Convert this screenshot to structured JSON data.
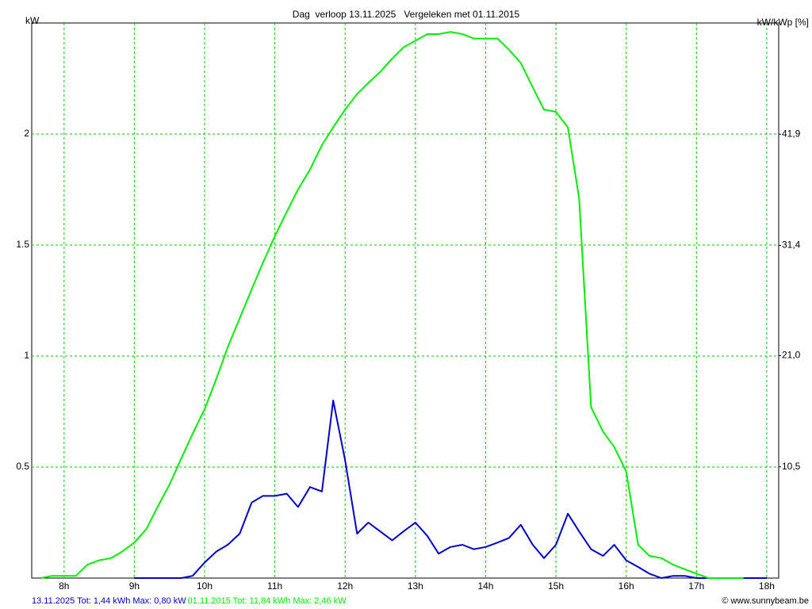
{
  "chart_data": {
    "type": "line",
    "title": "Dag  verloop 13.11.2025   Vergeleken met 01.11.2015",
    "y_label": "kW",
    "y2_label": "kW/kWp [%]",
    "credit": "© www.sunnybeam.be",
    "x": [
      7.67,
      7.83,
      8,
      8.17,
      8.33,
      8.5,
      8.67,
      8.83,
      9,
      9.17,
      9.33,
      9.5,
      9.67,
      9.83,
      10,
      10.17,
      10.33,
      10.5,
      10.67,
      10.83,
      11,
      11.17,
      11.33,
      11.5,
      11.67,
      11.83,
      12,
      12.17,
      12.33,
      12.5,
      12.67,
      12.83,
      13,
      13.17,
      13.33,
      13.5,
      13.67,
      13.83,
      14,
      14.17,
      14.33,
      14.5,
      14.67,
      14.83,
      15,
      15.17,
      15.33,
      15.5,
      15.67,
      15.83,
      16,
      16.17,
      16.33,
      16.5,
      16.67,
      16.83,
      17,
      17.17,
      17.33,
      17.5,
      17.67,
      17.83,
      18
    ],
    "xlim": [
      7.54,
      18.17
    ],
    "xticks": [
      {
        "value": 8,
        "label": "8h"
      },
      {
        "value": 9,
        "label": "9h"
      },
      {
        "value": 10,
        "label": "10h"
      },
      {
        "value": 11,
        "label": "11h"
      },
      {
        "value": 12,
        "label": "12h"
      },
      {
        "value": 13,
        "label": "13h"
      },
      {
        "value": 14,
        "label": "14h"
      },
      {
        "value": 15,
        "label": "15h"
      },
      {
        "value": 16,
        "label": "16h"
      },
      {
        "value": 17,
        "label": "17h"
      },
      {
        "value": 18,
        "label": "18h"
      }
    ],
    "ylim": [
      0,
      2.5
    ],
    "yticks": [
      0.5,
      1,
      1.5,
      2
    ],
    "y2lim": [
      0,
      52.4
    ],
    "y2ticks": [
      {
        "value": 10.5,
        "label": "10,5"
      },
      {
        "value": 21.0,
        "label": "21,0"
      },
      {
        "value": 31.4,
        "label": "31,4"
      },
      {
        "value": 41.9,
        "label": "41,9"
      }
    ],
    "grid": true,
    "series": [
      {
        "name": "13.11.2025 Tot: 1,44 kWh Max: 0,80 kW",
        "color": "#0000cc",
        "values": [
          null,
          null,
          null,
          null,
          null,
          null,
          null,
          null,
          0,
          0,
          0,
          0,
          0,
          0.01,
          0.07,
          0.12,
          0.15,
          0.2,
          0.34,
          0.37,
          0.37,
          0.38,
          0.32,
          0.41,
          0.39,
          0.8,
          0.53,
          0.2,
          0.25,
          0.21,
          0.17,
          0.21,
          0.25,
          0.19,
          0.11,
          0.14,
          0.15,
          0.13,
          0.14,
          0.16,
          0.18,
          0.24,
          0.15,
          0.09,
          0.15,
          0.29,
          0.21,
          0.13,
          0.1,
          0.15,
          0.08,
          0.05,
          0.02,
          0,
          0.01,
          0.01,
          0,
          0,
          0,
          0,
          0,
          0,
          0
        ]
      },
      {
        "name": "01.11.2015 Tot: 11,84 kWh Max: 2,46 kW",
        "color": "#00ee00",
        "values": [
          0,
          0.01,
          0.01,
          0.01,
          0.06,
          0.08,
          0.09,
          0.12,
          0.16,
          0.22,
          0.32,
          0.42,
          0.54,
          0.65,
          0.76,
          0.9,
          1.04,
          1.17,
          1.3,
          1.42,
          1.54,
          1.65,
          1.75,
          1.84,
          1.95,
          2.03,
          2.11,
          2.18,
          2.23,
          2.28,
          2.34,
          2.39,
          2.42,
          2.45,
          2.45,
          2.46,
          2.45,
          2.43,
          2.43,
          2.43,
          2.38,
          2.32,
          2.21,
          2.11,
          2.1,
          2.03,
          1.71,
          0.77,
          0.66,
          0.59,
          0.48,
          0.15,
          0.1,
          0.09,
          0.06,
          0.04,
          0.02,
          0,
          0,
          0,
          0,
          null,
          null
        ]
      }
    ]
  }
}
